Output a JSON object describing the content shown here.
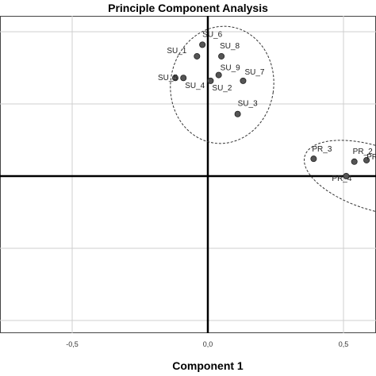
{
  "chart_data": {
    "type": "scatter",
    "title": "Principle Component Analysis",
    "xlabel": "Component 1",
    "ylabel": "",
    "x_ticks": [
      "-0,5",
      "0,0",
      "0,5"
    ],
    "xlim": [
      -0.8,
      0.62
    ],
    "ylim": [
      -0.62,
      0.62
    ],
    "grid": true,
    "points": [
      {
        "label": "SU_6",
        "x": -0.02,
        "y": 0.455
      },
      {
        "label": "SU_1",
        "x": -0.04,
        "y": 0.415
      },
      {
        "label": "SU_8",
        "x": 0.05,
        "y": 0.415
      },
      {
        "label": "SU_5",
        "x": -0.12,
        "y": 0.34
      },
      {
        "label": "SU_4",
        "x": -0.09,
        "y": 0.34
      },
      {
        "label": "SU_9",
        "x": 0.04,
        "y": 0.35
      },
      {
        "label": "SU_7",
        "x": 0.13,
        "y": 0.33
      },
      {
        "label": "SU_2",
        "x": 0.01,
        "y": 0.33
      },
      {
        "label": "SU_3",
        "x": 0.11,
        "y": 0.215
      },
      {
        "label": "PR_3",
        "x": 0.39,
        "y": 0.06
      },
      {
        "label": "PR_2",
        "x": 0.54,
        "y": 0.05
      },
      {
        "label": "PR_4",
        "x": 0.51,
        "y": 0.0
      },
      {
        "label": "PR",
        "x": 0.585,
        "y": 0.055
      }
    ]
  }
}
